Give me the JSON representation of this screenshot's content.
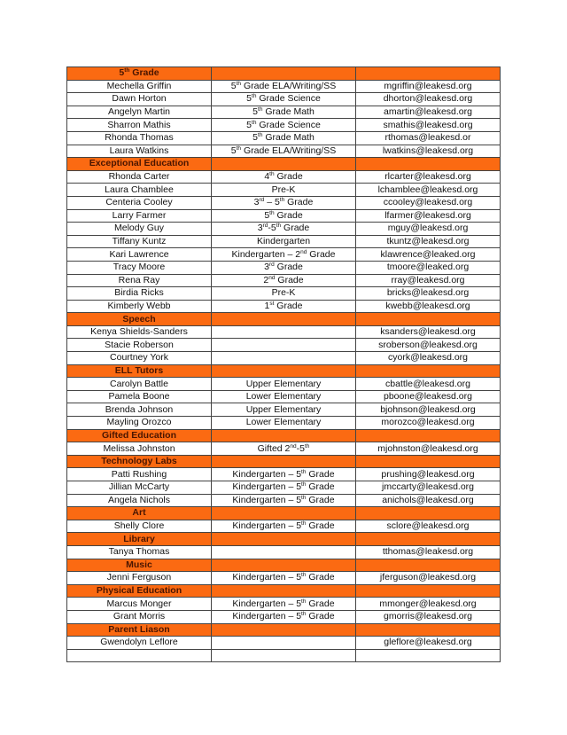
{
  "accent_color": "#fb6a12",
  "sections": [
    {
      "title": "5th Grade",
      "rows": [
        [
          "Mechella Griffin",
          "5th Grade ELA/Writing/SS",
          "mgriffin@leakesd.org"
        ],
        [
          "Dawn Horton",
          "5th Grade Science",
          "dhorton@leakesd.org"
        ],
        [
          "Angelyn Martin",
          "5th Grade Math",
          "amartin@leakesd.org"
        ],
        [
          "Sharron Mathis",
          "5th Grade Science",
          "smathis@leakesd.org"
        ],
        [
          "Rhonda Thomas",
          "5th Grade Math",
          "rthomas@leakesd.or"
        ],
        [
          "Laura Watkins",
          "5th Grade ELA/Writing/SS",
          "lwatkins@leakesd.org"
        ]
      ]
    },
    {
      "title": "Exceptional Education",
      "rows": [
        [
          "Rhonda Carter",
          "4th Grade",
          "rlcarter@leakesd.org"
        ],
        [
          "Laura Chamblee",
          "Pre-K",
          "lchamblee@leakesd.org"
        ],
        [
          "Centeria Cooley",
          "3rd – 5th Grade",
          "ccooley@leakesd.org"
        ],
        [
          "Larry Farmer",
          "5th Grade",
          "lfarmer@leakesd.org"
        ],
        [
          "Melody Guy",
          "3rd-5th Grade",
          "mguy@leakesd.org"
        ],
        [
          "Tiffany Kuntz",
          "Kindergarten",
          "tkuntz@leakesd.org"
        ],
        [
          "Kari Lawrence",
          "Kindergarten – 2nd Grade",
          "klawrence@leaked.org"
        ],
        [
          "Tracy Moore",
          "3rd Grade",
          "tmoore@leaked.org"
        ],
        [
          "Rena Ray",
          "2nd Grade",
          "rray@leakesd.org"
        ],
        [
          "Birdia Ricks",
          "Pre-K",
          "bricks@leakesd.org"
        ],
        [
          "Kimberly Webb",
          "1st Grade",
          "kwebb@leakesd.org"
        ]
      ]
    },
    {
      "title": "Speech",
      "rows": [
        [
          "Kenya Shields-Sanders",
          "",
          "ksanders@leakesd.org"
        ],
        [
          "Stacie Roberson",
          "",
          "sroberson@leakesd.org"
        ],
        [
          "Courtney York",
          "",
          "cyork@leakesd.org"
        ]
      ]
    },
    {
      "title": "ELL Tutors",
      "rows": [
        [
          "Carolyn Battle",
          "Upper Elementary",
          "cbattle@leakesd.org"
        ],
        [
          "Pamela Boone",
          "Lower Elementary",
          "pboone@leakesd.org"
        ],
        [
          "Brenda Johnson",
          "Upper Elementary",
          "bjohnson@leakesd.org"
        ],
        [
          "Mayling Orozco",
          "Lower Elementary",
          "morozco@leakesd.org"
        ]
      ]
    },
    {
      "title": "Gifted Education",
      "rows": [
        [
          "Melissa Johnston",
          "Gifted 2nd-5th",
          "mjohnston@leakesd.org"
        ]
      ]
    },
    {
      "title": "Technology Labs",
      "rows": [
        [
          "Patti Rushing",
          "Kindergarten – 5th Grade",
          "prushing@leakesd.org"
        ],
        [
          "Jillian McCarty",
          "Kindergarten – 5th Grade",
          "jmccarty@leakesd.org"
        ],
        [
          "Angela Nichols",
          "Kindergarten – 5th Grade",
          "anichols@leakesd.org"
        ]
      ]
    },
    {
      "title": "Art",
      "rows": [
        [
          "Shelly Clore",
          "Kindergarten – 5th Grade",
          "sclore@leakesd.org"
        ]
      ]
    },
    {
      "title": "Library",
      "rows": [
        [
          "Tanya Thomas",
          "",
          "tthomas@leakesd.org"
        ]
      ]
    },
    {
      "title": "Music",
      "rows": [
        [
          "Jenni Ferguson",
          "Kindergarten – 5th Grade",
          "jferguson@leakesd.org"
        ]
      ]
    },
    {
      "title": "Physical Education",
      "rows": [
        [
          "Marcus Monger",
          "Kindergarten – 5th Grade",
          "mmonger@leakesd.org"
        ],
        [
          "Grant Morris",
          "Kindergarten – 5th Grade",
          "gmorris@leakesd.org"
        ]
      ]
    },
    {
      "title": "Parent Liason",
      "rows": [
        [
          "Gwendolyn Leflore",
          "",
          "gleflore@leakesd.org"
        ],
        [
          "",
          "",
          ""
        ]
      ]
    }
  ]
}
